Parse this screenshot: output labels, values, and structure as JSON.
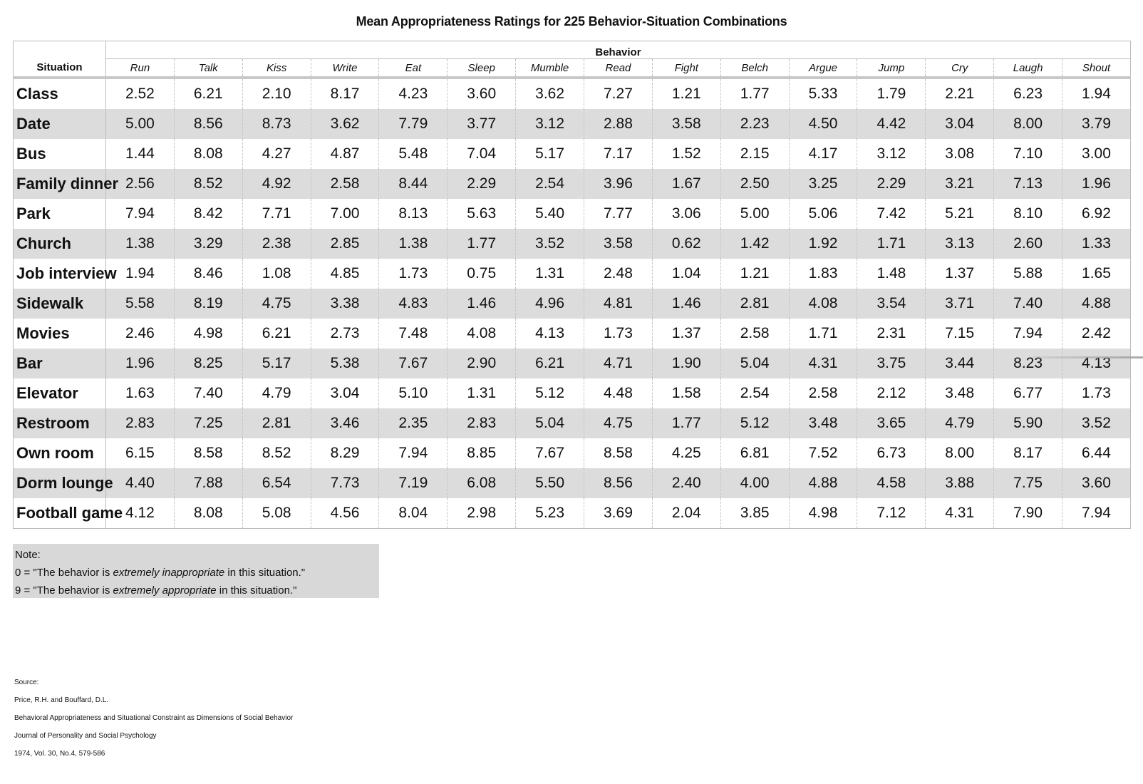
{
  "title": "Mean Appropriateness Ratings for 225 Behavior-Situation Combinations",
  "header": {
    "situation_label": "Situation",
    "behavior_group_label": "Behavior",
    "behaviors": [
      "Run",
      "Talk",
      "Kiss",
      "Write",
      "Eat",
      "Sleep",
      "Mumble",
      "Read",
      "Fight",
      "Belch",
      "Argue",
      "Jump",
      "Cry",
      "Laugh",
      "Shout"
    ]
  },
  "rows": [
    {
      "situation": "Class",
      "values": [
        "2.52",
        "6.21",
        "2.10",
        "8.17",
        "4.23",
        "3.60",
        "3.62",
        "7.27",
        "1.21",
        "1.77",
        "5.33",
        "1.79",
        "2.21",
        "6.23",
        "1.94"
      ]
    },
    {
      "situation": "Date",
      "values": [
        "5.00",
        "8.56",
        "8.73",
        "3.62",
        "7.79",
        "3.77",
        "3.12",
        "2.88",
        "3.58",
        "2.23",
        "4.50",
        "4.42",
        "3.04",
        "8.00",
        "3.79"
      ]
    },
    {
      "situation": "Bus",
      "values": [
        "1.44",
        "8.08",
        "4.27",
        "4.87",
        "5.48",
        "7.04",
        "5.17",
        "7.17",
        "1.52",
        "2.15",
        "4.17",
        "3.12",
        "3.08",
        "7.10",
        "3.00"
      ]
    },
    {
      "situation": "Family dinner",
      "values": [
        "2.56",
        "8.52",
        "4.92",
        "2.58",
        "8.44",
        "2.29",
        "2.54",
        "3.96",
        "1.67",
        "2.50",
        "3.25",
        "2.29",
        "3.21",
        "7.13",
        "1.96"
      ]
    },
    {
      "situation": "Park",
      "values": [
        "7.94",
        "8.42",
        "7.71",
        "7.00",
        "8.13",
        "5.63",
        "5.40",
        "7.77",
        "3.06",
        "5.00",
        "5.06",
        "7.42",
        "5.21",
        "8.10",
        "6.92"
      ]
    },
    {
      "situation": "Church",
      "values": [
        "1.38",
        "3.29",
        "2.38",
        "2.85",
        "1.38",
        "1.77",
        "3.52",
        "3.58",
        "0.62",
        "1.42",
        "1.92",
        "1.71",
        "3.13",
        "2.60",
        "1.33"
      ]
    },
    {
      "situation": "Job interview",
      "values": [
        "1.94",
        "8.46",
        "1.08",
        "4.85",
        "1.73",
        "0.75",
        "1.31",
        "2.48",
        "1.04",
        "1.21",
        "1.83",
        "1.48",
        "1.37",
        "5.88",
        "1.65"
      ]
    },
    {
      "situation": "Sidewalk",
      "values": [
        "5.58",
        "8.19",
        "4.75",
        "3.38",
        "4.83",
        "1.46",
        "4.96",
        "4.81",
        "1.46",
        "2.81",
        "4.08",
        "3.54",
        "3.71",
        "7.40",
        "4.88"
      ]
    },
    {
      "situation": "Movies",
      "values": [
        "2.46",
        "4.98",
        "6.21",
        "2.73",
        "7.48",
        "4.08",
        "4.13",
        "1.73",
        "1.37",
        "2.58",
        "1.71",
        "2.31",
        "7.15",
        "7.94",
        "2.42"
      ]
    },
    {
      "situation": "Bar",
      "values": [
        "1.96",
        "8.25",
        "5.17",
        "5.38",
        "7.67",
        "2.90",
        "6.21",
        "4.71",
        "1.90",
        "5.04",
        "4.31",
        "3.75",
        "3.44",
        "8.23",
        "4.13"
      ]
    },
    {
      "situation": "Elevator",
      "values": [
        "1.63",
        "7.40",
        "4.79",
        "3.04",
        "5.10",
        "1.31",
        "5.12",
        "4.48",
        "1.58",
        "2.54",
        "2.58",
        "2.12",
        "3.48",
        "6.77",
        "1.73"
      ]
    },
    {
      "situation": "Restroom",
      "values": [
        "2.83",
        "7.25",
        "2.81",
        "3.46",
        "2.35",
        "2.83",
        "5.04",
        "4.75",
        "1.77",
        "5.12",
        "3.48",
        "3.65",
        "4.79",
        "5.90",
        "3.52"
      ]
    },
    {
      "situation": "Own room",
      "values": [
        "6.15",
        "8.58",
        "8.52",
        "8.29",
        "7.94",
        "8.85",
        "7.67",
        "8.58",
        "4.25",
        "6.81",
        "7.52",
        "6.73",
        "8.00",
        "8.17",
        "6.44"
      ]
    },
    {
      "situation": "Dorm lounge",
      "values": [
        "4.40",
        "7.88",
        "6.54",
        "7.73",
        "7.19",
        "6.08",
        "5.50",
        "8.56",
        "2.40",
        "4.00",
        "4.88",
        "4.58",
        "3.88",
        "7.75",
        "3.60"
      ]
    },
    {
      "situation": "Football game",
      "values": [
        "4.12",
        "8.08",
        "5.08",
        "4.56",
        "8.04",
        "2.98",
        "5.23",
        "3.69",
        "2.04",
        "3.85",
        "4.98",
        "7.12",
        "4.31",
        "7.90",
        "7.94"
      ]
    }
  ],
  "note": {
    "heading": "Note:",
    "line1_prefix": "0 = \"The behavior is ",
    "line1_emph": "extremely inappropriate",
    "line1_suffix": " in this situation.\"",
    "line2_prefix": "9 = \"The behavior is ",
    "line2_emph": "extremely appropriate",
    "line2_suffix": " in this situation.\""
  },
  "source": {
    "label": "Source:",
    "authors": "Price, R.H. and Bouffard, D.L.",
    "article": "Behavioral Appropriateness and Situational Constraint as Dimensions of Social Behavior",
    "journal": "Journal of Personality and Social Psychology",
    "citation": "1974, Vol. 30, No.4, 579-586"
  },
  "colors": {
    "row_shade": "#dcdcdc",
    "note_bg": "#d8d8d8",
    "rule": "#c8c8c8"
  }
}
